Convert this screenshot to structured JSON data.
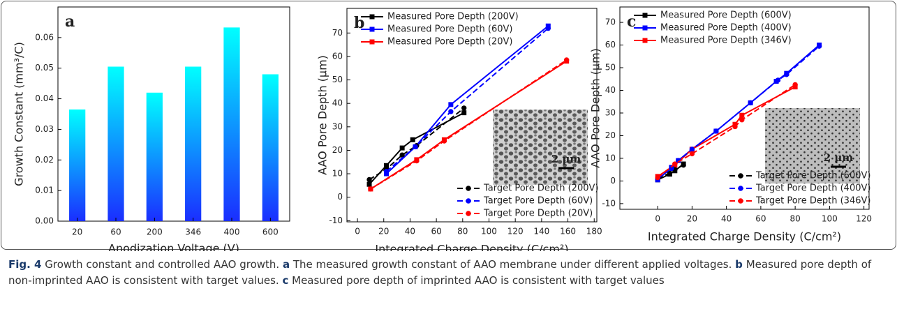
{
  "chart_data": [
    {
      "type": "bar",
      "panel": "a",
      "x_label": "Anodization Voltage (V)",
      "y_label": "Growth Constant (mm³/C)",
      "categories": [
        "20",
        "60",
        "200",
        "346",
        "400",
        "600"
      ],
      "values": [
        0.0365,
        0.0505,
        0.042,
        0.0505,
        0.0633,
        0.048
      ],
      "gradient": [
        "#00ffff",
        "#1a2eff"
      ],
      "ylim": [
        0,
        0.07
      ],
      "yticks": [
        {
          "value": 0,
          "label": "0.00"
        },
        {
          "value": 0.01,
          "label": "0.01"
        },
        {
          "value": 0.02,
          "label": "0.02"
        },
        {
          "value": 0.03,
          "label": "0.03"
        },
        {
          "value": 0.04,
          "label": "0.04"
        },
        {
          "value": 0.05,
          "label": "0.05"
        },
        {
          "value": 0.06,
          "label": "0.06"
        }
      ]
    },
    {
      "type": "line",
      "panel": "b",
      "x_label": "Integrated Charge Density (C/cm²)",
      "y_label": "AAO Pore Depth (μm)",
      "inset": {
        "label": "2 μm",
        "pattern": "irregular"
      },
      "xlim": [
        -8,
        182
      ],
      "xticks": [
        0,
        20,
        40,
        60,
        80,
        100,
        120,
        140,
        160,
        180
      ],
      "ylim": [
        -10.5,
        80.5
      ],
      "yticks": [
        -10,
        0,
        10,
        20,
        30,
        40,
        50,
        60,
        70
      ],
      "series": [
        {
          "name": "Measured Pore Depth (200V)",
          "color": "#000000",
          "linestyle": "solid",
          "marker": "square",
          "legend": "upper left",
          "x": [
            9,
            22,
            34,
            42,
            81
          ],
          "values": [
            5.5,
            13.5,
            21,
            24.5,
            36
          ]
        },
        {
          "name": "Measured Pore Depth (60V)",
          "color": "#0000ff",
          "linestyle": "solid",
          "marker": "square",
          "legend": "upper left",
          "x": [
            22,
            44,
            71,
            145
          ],
          "values": [
            10,
            21.5,
            39.5,
            73
          ]
        },
        {
          "name": "Measured Pore Depth (20V)",
          "color": "#ff0000",
          "linestyle": "solid",
          "marker": "square",
          "legend": "upper left",
          "x": [
            10,
            45,
            66,
            159
          ],
          "values": [
            3.5,
            16,
            24.5,
            58
          ]
        },
        {
          "name": "Target Pore Depth (200V)",
          "color": "#000000",
          "linestyle": "dashed",
          "marker": "circle",
          "legend": "lower right",
          "x": [
            9,
            22,
            34,
            45,
            81
          ],
          "values": [
            7.5,
            12,
            18,
            22,
            38
          ]
        },
        {
          "name": "Target Pore Depth (60V)",
          "color": "#0000ff",
          "linestyle": "dashed",
          "marker": "circle",
          "legend": "lower right",
          "x": [
            22,
            44,
            71,
            145
          ],
          "values": [
            11,
            21.5,
            36.5,
            72
          ]
        },
        {
          "name": "Target Pore Depth (20V)",
          "color": "#ff0000",
          "linestyle": "dashed",
          "marker": "circle",
          "legend": "lower right",
          "x": [
            10,
            45,
            66,
            159
          ],
          "values": [
            3.5,
            15.5,
            24,
            58.5
          ]
        }
      ]
    },
    {
      "type": "line",
      "panel": "c",
      "x_label": "Integrated Charge Density (C/cm²)",
      "y_label": "AAO Pore Depth (μm)",
      "inset": {
        "label": "2 μm",
        "pattern": "hexagonal"
      },
      "xlim": [
        -22,
        123
      ],
      "xticks": [
        0,
        20,
        40,
        60,
        80,
        100,
        120
      ],
      "ylim": [
        -12.5,
        76.8
      ],
      "yticks": [
        -10,
        0,
        10,
        20,
        30,
        40,
        50,
        60,
        70
      ],
      "series": [
        {
          "name": "Measured Pore Depth (600V)",
          "color": "#000000",
          "linestyle": "solid",
          "marker": "square",
          "legend": "upper left",
          "x": [
            0,
            7,
            10,
            15
          ],
          "values": [
            0.5,
            3,
            4.5,
            7.5
          ]
        },
        {
          "name": "Measured Pore Depth (400V)",
          "color": "#0000ff",
          "linestyle": "solid",
          "marker": "square",
          "legend": "upper left",
          "x": [
            0,
            8,
            12,
            20,
            34,
            54,
            69,
            75,
            94
          ],
          "values": [
            0.5,
            6,
            9,
            14,
            22,
            34.5,
            44,
            47.5,
            60
          ]
        },
        {
          "name": "Measured Pore Depth (346V)",
          "color": "#ff0000",
          "linestyle": "solid",
          "marker": "square",
          "legend": "upper left",
          "x": [
            0,
            10,
            20,
            45,
            49,
            80
          ],
          "values": [
            2,
            7,
            14,
            25,
            29,
            41.5
          ]
        },
        {
          "name": "Target Pore Depth (600V)",
          "color": "#000000",
          "linestyle": "dashed",
          "marker": "circle",
          "legend": "lower right",
          "x": [
            0,
            7,
            10,
            15
          ],
          "values": [
            1,
            3.5,
            5,
            7
          ]
        },
        {
          "name": "Target Pore Depth (400V)",
          "color": "#0000ff",
          "linestyle": "dashed",
          "marker": "circle",
          "legend": "lower right",
          "x": [
            0,
            8,
            12,
            20,
            34,
            54,
            70,
            75,
            94
          ],
          "values": [
            1,
            5.5,
            9,
            14,
            22,
            34.5,
            44.5,
            47,
            59.5
          ]
        },
        {
          "name": "Target Pore Depth (346V)",
          "color": "#ff0000",
          "linestyle": "dashed",
          "marker": "circle",
          "legend": "lower right",
          "x": [
            0,
            10,
            20,
            45,
            49,
            80
          ],
          "values": [
            1.5,
            7.5,
            12,
            24,
            27,
            42.5
          ]
        }
      ]
    }
  ],
  "caption": {
    "label": "Fig. 4",
    "title": "Growth constant and controlled AAO growth.",
    "parts": [
      {
        "letter": "a",
        "text": "The measured growth constant of AAO membrane under different applied voltages."
      },
      {
        "letter": "b",
        "text": "Measured pore depth of non-imprinted AAO is consistent with target values."
      },
      {
        "letter": "c",
        "text": "Measured pore depth of imprinted AAO is consistent with target values"
      }
    ]
  }
}
